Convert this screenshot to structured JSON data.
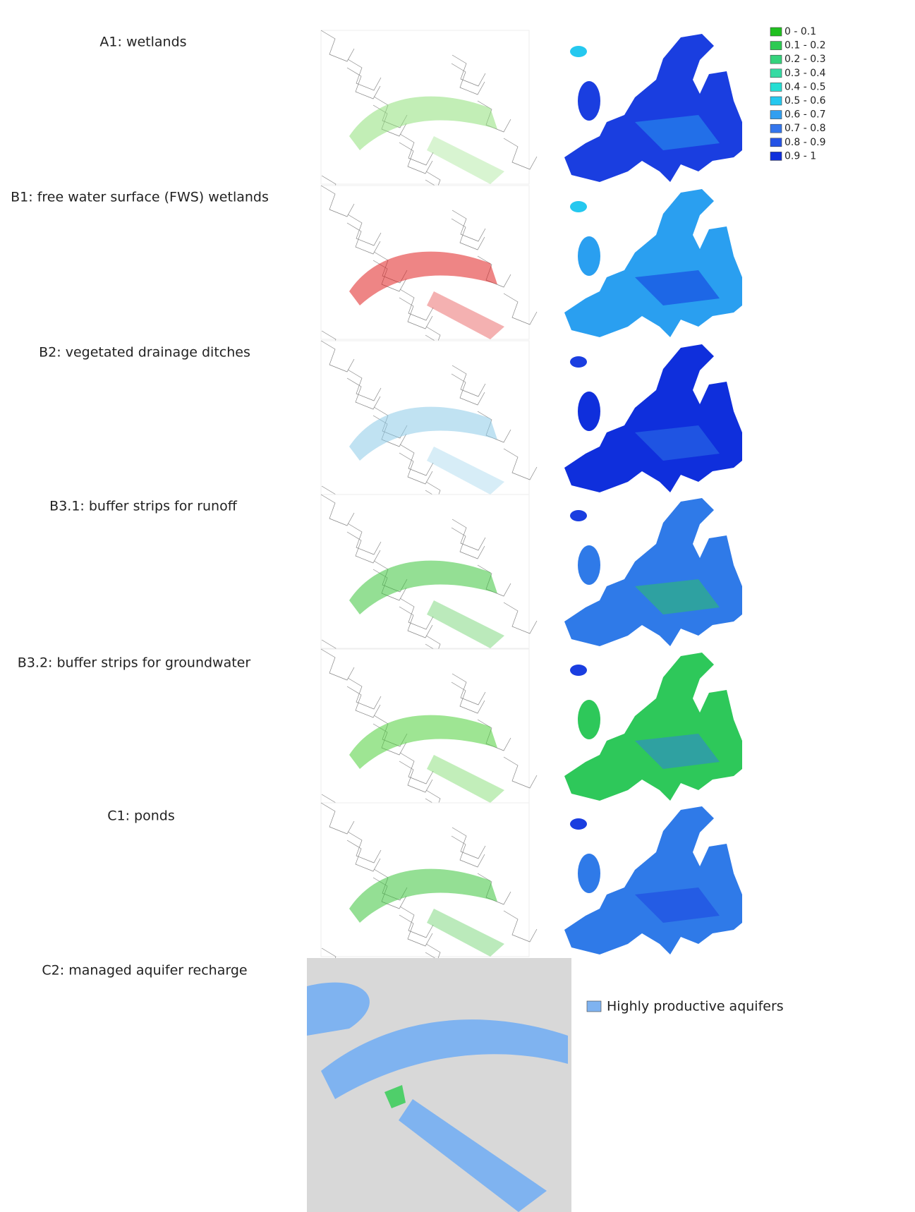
{
  "rows": [
    {
      "label": "A1: wetlands"
    },
    {
      "label": "B1: free water surface (FWS)  wetlands"
    },
    {
      "label": "B2: vegetated drainage ditches"
    },
    {
      "label": "B3.1: buffer strips for runoff"
    },
    {
      "label": "B3.2: buffer strips for groundwater"
    },
    {
      "label": "C1: ponds"
    },
    {
      "label": "C2: managed aquifer recharge"
    }
  ],
  "legend": [
    {
      "label": "0 - 0.1",
      "color": "#1fc01f"
    },
    {
      "label": "0.1 - 0.2",
      "color": "#2dca52"
    },
    {
      "label": "0.2 - 0.3",
      "color": "#35d27c"
    },
    {
      "label": "0.3 - 0.4",
      "color": "#35dba3"
    },
    {
      "label": "0.4 - 0.5",
      "color": "#25ded3"
    },
    {
      "label": "0.5 - 0.6",
      "color": "#25c8ef"
    },
    {
      "label": "0.6 - 0.7",
      "color": "#329ff0"
    },
    {
      "label": "0.7 - 0.8",
      "color": "#3476ec"
    },
    {
      "label": "0.8 - 0.9",
      "color": "#2453e6"
    },
    {
      "label": "0.9 - 1",
      "color": "#0f2fdc"
    }
  ],
  "aquifer_legend": {
    "label": "Highly productive aquifers",
    "color": "#7fb3f0"
  }
}
